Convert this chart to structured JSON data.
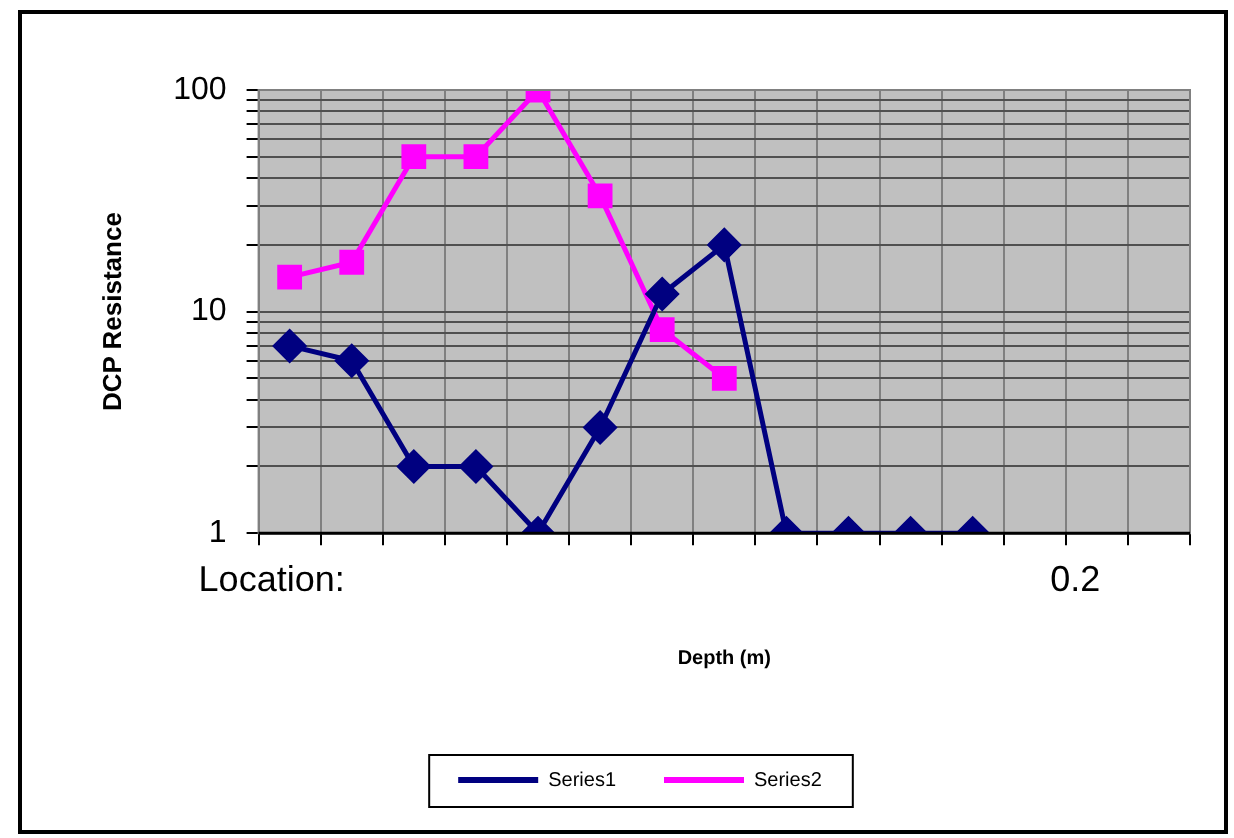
{
  "chart_data": {
    "type": "line",
    "ylabel": "DCP Resistance",
    "xlabel": "Depth (m)",
    "categories": [
      null,
      null,
      null,
      null,
      null,
      null,
      null,
      null,
      null,
      null,
      null,
      null,
      null,
      null,
      null
    ],
    "series": [
      {
        "name": "Series1",
        "color": "#000080",
        "marker": "diamond",
        "values": [
          7,
          6,
          2,
          2,
          1,
          3,
          12,
          20,
          1,
          1,
          1,
          1,
          null,
          null,
          null
        ]
      },
      {
        "name": "Series2",
        "color": "#ff00ff",
        "marker": "square",
        "values": [
          14.3,
          16.7,
          50,
          50,
          100,
          33.3,
          8.3,
          5,
          null,
          null,
          null,
          null,
          null,
          null,
          null
        ]
      }
    ],
    "log": "y",
    "ylim": [
      1,
      100
    ],
    "yticks": [
      1,
      10,
      100
    ],
    "grid": true,
    "legend": "bottom",
    "line_style": "solid",
    "annotations": [
      "Location:",
      "0.2"
    ]
  }
}
